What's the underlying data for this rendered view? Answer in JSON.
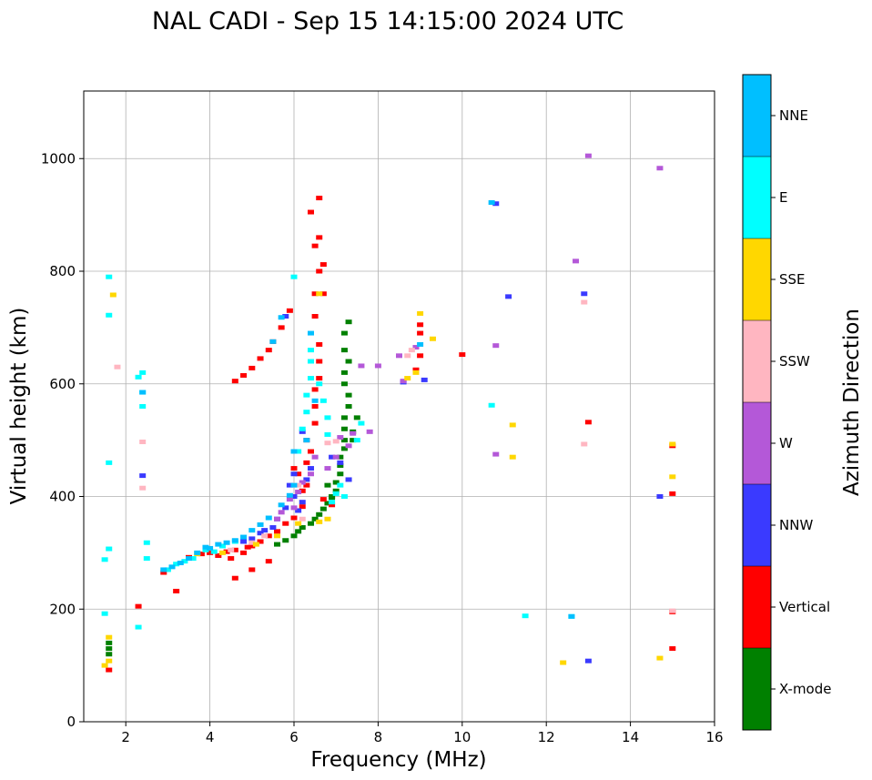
{
  "chart_data": {
    "type": "scatter",
    "title": "NAL CADI - Sep 15 14:15:00 2024 UTC",
    "xlabel": "Frequency (MHz)",
    "ylabel": "Virtual height (km)",
    "xlim": [
      1,
      16
    ],
    "ylim": [
      0,
      1120
    ],
    "xticks": [
      2,
      4,
      6,
      8,
      10,
      12,
      14,
      16
    ],
    "yticks": [
      0,
      200,
      400,
      600,
      800,
      1000
    ],
    "grid": true,
    "colorbar": {
      "label": "Azimuth Direction",
      "categories": [
        {
          "name": "X-mode",
          "color": "#008000"
        },
        {
          "name": "Vertical",
          "color": "#ff0000"
        },
        {
          "name": "NNW",
          "color": "#3a3aff"
        },
        {
          "name": "W",
          "color": "#b458d8"
        },
        {
          "name": "SSW",
          "color": "#ffb6c1"
        },
        {
          "name": "SSE",
          "color": "#ffd700"
        },
        {
          "name": "E",
          "color": "#00ffff"
        },
        {
          "name": "NNE",
          "color": "#00bfff"
        }
      ]
    },
    "series": [
      {
        "name": "X-mode",
        "points": [
          [
            5.6,
            315
          ],
          [
            5.8,
            322
          ],
          [
            6.0,
            330
          ],
          [
            6.1,
            338
          ],
          [
            6.2,
            345
          ],
          [
            6.4,
            352
          ],
          [
            6.5,
            360
          ],
          [
            6.6,
            368
          ],
          [
            6.7,
            378
          ],
          [
            6.8,
            388
          ],
          [
            6.9,
            398
          ],
          [
            7.0,
            410
          ],
          [
            7.0,
            425
          ],
          [
            7.1,
            440
          ],
          [
            7.1,
            455
          ],
          [
            7.1,
            470
          ],
          [
            7.2,
            485
          ],
          [
            7.2,
            500
          ],
          [
            7.2,
            520
          ],
          [
            7.2,
            540
          ],
          [
            7.3,
            560
          ],
          [
            7.3,
            580
          ],
          [
            7.2,
            600
          ],
          [
            7.2,
            620
          ],
          [
            7.3,
            640
          ],
          [
            7.2,
            660
          ],
          [
            7.2,
            690
          ],
          [
            7.3,
            710
          ],
          [
            6.9,
            400
          ],
          [
            6.8,
            420
          ],
          [
            7.4,
            515
          ],
          [
            7.5,
            540
          ],
          [
            7.4,
            500
          ],
          [
            1.6,
            120
          ],
          [
            1.6,
            130
          ],
          [
            1.6,
            140
          ]
        ]
      },
      {
        "name": "Vertical",
        "points": [
          [
            2.9,
            265
          ],
          [
            3.2,
            232
          ],
          [
            3.5,
            292
          ],
          [
            3.8,
            298
          ],
          [
            4.0,
            300
          ],
          [
            4.2,
            295
          ],
          [
            4.4,
            302
          ],
          [
            4.6,
            305
          ],
          [
            4.8,
            300
          ],
          [
            4.5,
            290
          ],
          [
            4.9,
            310
          ],
          [
            5.0,
            312
          ],
          [
            5.2,
            320
          ],
          [
            5.4,
            330
          ],
          [
            5.6,
            338
          ],
          [
            5.8,
            352
          ],
          [
            6.0,
            362
          ],
          [
            6.2,
            382
          ],
          [
            6.2,
            410
          ],
          [
            6.1,
            440
          ],
          [
            6.3,
            420
          ],
          [
            6.3,
            460
          ],
          [
            6.3,
            500
          ],
          [
            6.4,
            480
          ],
          [
            6.5,
            530
          ],
          [
            6.5,
            560
          ],
          [
            6.5,
            590
          ],
          [
            6.6,
            610
          ],
          [
            6.6,
            640
          ],
          [
            6.6,
            670
          ],
          [
            6.5,
            720
          ],
          [
            6.5,
            760
          ],
          [
            6.6,
            800
          ],
          [
            6.6,
            860
          ],
          [
            6.6,
            930
          ],
          [
            6.4,
            905
          ],
          [
            6.5,
            845
          ],
          [
            4.6,
            605
          ],
          [
            4.8,
            615
          ],
          [
            5.0,
            628
          ],
          [
            5.2,
            645
          ],
          [
            5.4,
            660
          ],
          [
            5.5,
            675
          ],
          [
            5.7,
            700
          ],
          [
            5.9,
            730
          ],
          [
            9.0,
            650
          ],
          [
            9.0,
            705
          ],
          [
            9.0,
            690
          ],
          [
            8.9,
            625
          ],
          [
            10.0,
            652
          ],
          [
            13.0,
            532
          ],
          [
            15.0,
            405
          ],
          [
            15.0,
            490
          ],
          [
            15.0,
            130
          ],
          [
            15.0,
            195
          ],
          [
            2.3,
            205
          ],
          [
            1.6,
            92
          ],
          [
            5.4,
            285
          ],
          [
            4.6,
            255
          ],
          [
            5.0,
            270
          ],
          [
            6.0,
            450
          ],
          [
            6.7,
            395
          ],
          [
            6.9,
            385
          ],
          [
            6.7,
            760
          ],
          [
            6.7,
            812
          ]
        ]
      },
      {
        "name": "NNW",
        "points": [
          [
            5.8,
            380
          ],
          [
            6.0,
            400
          ],
          [
            6.2,
            390
          ],
          [
            5.6,
            360
          ],
          [
            5.5,
            345
          ],
          [
            6.1,
            375
          ],
          [
            4.8,
            320
          ],
          [
            5.0,
            325
          ],
          [
            5.2,
            335
          ],
          [
            5.3,
            340
          ],
          [
            5.9,
            420
          ],
          [
            6.3,
            430
          ],
          [
            6.4,
            450
          ],
          [
            6.0,
            440
          ],
          [
            6.9,
            470
          ],
          [
            7.1,
            460
          ],
          [
            7.3,
            430
          ],
          [
            8.6,
            603
          ],
          [
            9.1,
            607
          ],
          [
            10.8,
            920
          ],
          [
            11.1,
            755
          ],
          [
            12.9,
            760
          ],
          [
            13.0,
            108
          ],
          [
            14.7,
            400
          ],
          [
            2.4,
            437
          ],
          [
            5.8,
            720
          ],
          [
            6.2,
            515
          ]
        ]
      },
      {
        "name": "W",
        "points": [
          [
            5.6,
            360
          ],
          [
            5.7,
            372
          ],
          [
            5.9,
            395
          ],
          [
            6.1,
            408
          ],
          [
            6.2,
            425
          ],
          [
            6.4,
            440
          ],
          [
            6.5,
            470
          ],
          [
            7.1,
            505
          ],
          [
            7.4,
            512
          ],
          [
            7.8,
            515
          ],
          [
            7.6,
            632
          ],
          [
            8.0,
            632
          ],
          [
            8.5,
            650
          ],
          [
            8.9,
            665
          ],
          [
            10.8,
            668
          ],
          [
            12.7,
            818
          ],
          [
            13.0,
            1005
          ],
          [
            14.7,
            983
          ],
          [
            10.8,
            475
          ],
          [
            6.8,
            450
          ],
          [
            7.0,
            470
          ],
          [
            7.3,
            490
          ],
          [
            6.0,
            380
          ],
          [
            8.6,
            605
          ]
        ]
      },
      {
        "name": "SSW",
        "points": [
          [
            1.8,
            630
          ],
          [
            2.4,
            497
          ],
          [
            2.4,
            415
          ],
          [
            4.5,
            305
          ],
          [
            5.0,
            318
          ],
          [
            5.3,
            330
          ],
          [
            6.1,
            420
          ],
          [
            6.8,
            495
          ],
          [
            8.7,
            650
          ],
          [
            8.8,
            660
          ],
          [
            12.9,
            745
          ],
          [
            12.9,
            493
          ],
          [
            15.0,
            197
          ],
          [
            6.2,
            360
          ],
          [
            7.0,
            498
          ]
        ]
      },
      {
        "name": "SSE",
        "points": [
          [
            1.7,
            758
          ],
          [
            1.6,
            150
          ],
          [
            1.6,
            108
          ],
          [
            1.5,
            100
          ],
          [
            3.7,
            298
          ],
          [
            4.3,
            300
          ],
          [
            5.1,
            315
          ],
          [
            5.6,
            330
          ],
          [
            6.1,
            352
          ],
          [
            6.6,
            355
          ],
          [
            6.8,
            360
          ],
          [
            9.0,
            725
          ],
          [
            9.3,
            680
          ],
          [
            8.7,
            610
          ],
          [
            8.9,
            620
          ],
          [
            11.2,
            527
          ],
          [
            11.2,
            470
          ],
          [
            12.4,
            105
          ],
          [
            14.7,
            113
          ],
          [
            15.0,
            435
          ],
          [
            15.0,
            493
          ],
          [
            6.6,
            760
          ]
        ]
      },
      {
        "name": "E",
        "points": [
          [
            1.6,
            790
          ],
          [
            1.6,
            722
          ],
          [
            1.6,
            460
          ],
          [
            1.5,
            288
          ],
          [
            1.6,
            307
          ],
          [
            1.5,
            192
          ],
          [
            2.3,
            168
          ],
          [
            2.4,
            585
          ],
          [
            2.4,
            560
          ],
          [
            2.3,
            612
          ],
          [
            2.4,
            620
          ],
          [
            2.5,
            318
          ],
          [
            2.5,
            290
          ],
          [
            3.0,
            270
          ],
          [
            3.2,
            280
          ],
          [
            3.4,
            285
          ],
          [
            3.6,
            290
          ],
          [
            3.9,
            305
          ],
          [
            4.1,
            302
          ],
          [
            4.3,
            312
          ],
          [
            4.6,
            320
          ],
          [
            6.0,
            790
          ],
          [
            6.1,
            480
          ],
          [
            6.2,
            520
          ],
          [
            6.3,
            550
          ],
          [
            6.3,
            580
          ],
          [
            6.4,
            610
          ],
          [
            6.4,
            640
          ],
          [
            6.4,
            660
          ],
          [
            6.6,
            600
          ],
          [
            6.7,
            570
          ],
          [
            6.8,
            540
          ],
          [
            6.8,
            510
          ],
          [
            6.9,
            390
          ],
          [
            7.0,
            405
          ],
          [
            7.1,
            420
          ],
          [
            7.2,
            400
          ],
          [
            7.5,
            500
          ],
          [
            10.7,
            562
          ],
          [
            11.5,
            188
          ],
          [
            12.6,
            187
          ],
          [
            7.6,
            530
          ]
        ]
      },
      {
        "name": "NNE",
        "points": [
          [
            2.9,
            270
          ],
          [
            3.1,
            275
          ],
          [
            3.3,
            282
          ],
          [
            3.5,
            290
          ],
          [
            3.7,
            300
          ],
          [
            3.9,
            310
          ],
          [
            4.0,
            308
          ],
          [
            4.2,
            315
          ],
          [
            4.4,
            318
          ],
          [
            4.6,
            322
          ],
          [
            4.8,
            328
          ],
          [
            5.0,
            340
          ],
          [
            5.2,
            350
          ],
          [
            5.4,
            362
          ],
          [
            5.7,
            385
          ],
          [
            5.9,
            402
          ],
          [
            6.0,
            420
          ],
          [
            6.4,
            690
          ],
          [
            6.5,
            570
          ],
          [
            6.3,
            500
          ],
          [
            6.0,
            480
          ],
          [
            2.4,
            585
          ],
          [
            9.0,
            670
          ],
          [
            10.7,
            922
          ],
          [
            12.6,
            187
          ],
          [
            5.5,
            675
          ],
          [
            5.7,
            718
          ]
        ]
      }
    ]
  }
}
